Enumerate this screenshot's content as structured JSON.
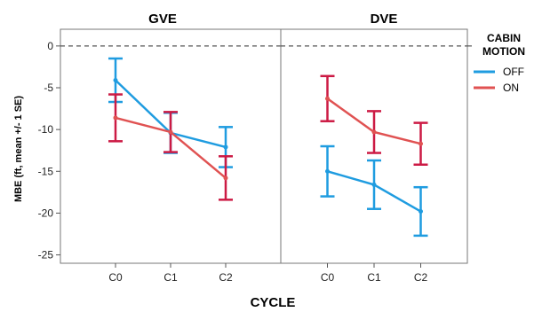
{
  "chart_data": {
    "type": "line",
    "ylabel": "MBE (ft, mean +/- 1 SE)",
    "xlabel": "CYCLE",
    "categories": [
      "C0",
      "C1",
      "C2"
    ],
    "ylim": [
      -26,
      2
    ],
    "yticks": [
      0,
      -5,
      -10,
      -15,
      -20,
      -25
    ],
    "reference_line": 0,
    "legend": {
      "title": "CABIN MOTION",
      "position": "right"
    },
    "series_colors": {
      "OFF": "#1f9ce0",
      "ON": "#e05252"
    },
    "errorbar_colors": {
      "OFF": "#1f9ce0",
      "ON": "#cc1a44"
    },
    "panels": [
      {
        "title": "GVE",
        "series": [
          {
            "name": "OFF",
            "values": [
              -4.1,
              -10.4,
              -12.1
            ],
            "se": [
              2.6,
              2.4,
              2.4
            ]
          },
          {
            "name": "ON",
            "values": [
              -8.6,
              -10.3,
              -15.8
            ],
            "se": [
              2.8,
              2.4,
              2.6
            ]
          }
        ]
      },
      {
        "title": "DVE",
        "series": [
          {
            "name": "OFF",
            "values": [
              -15.0,
              -16.6,
              -19.8
            ],
            "se": [
              3.0,
              2.9,
              2.9
            ]
          },
          {
            "name": "ON",
            "values": [
              -6.3,
              -10.3,
              -11.7
            ],
            "se": [
              2.7,
              2.5,
              2.5
            ]
          }
        ]
      }
    ]
  }
}
